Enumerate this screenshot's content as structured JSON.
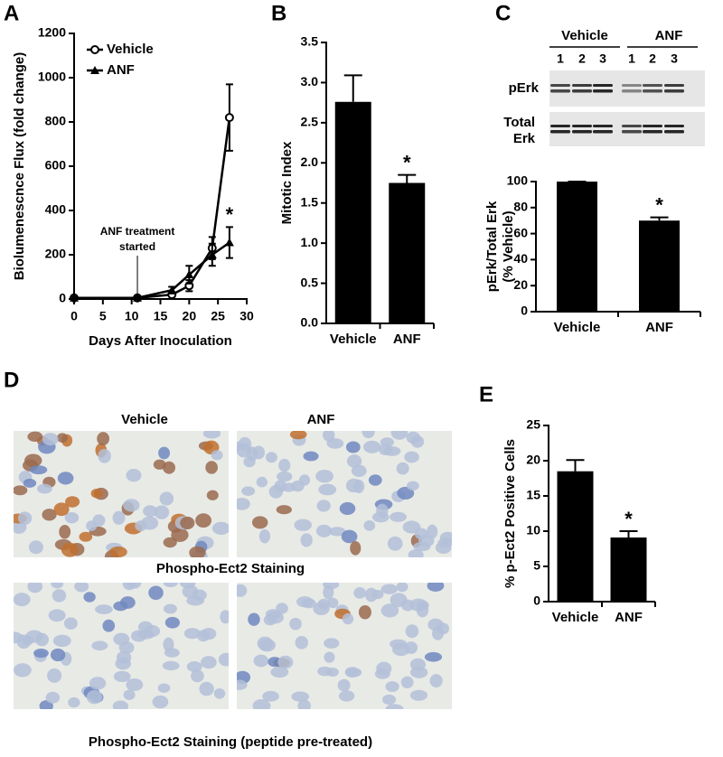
{
  "panel_labels": [
    "A",
    "B",
    "C",
    "D",
    "E"
  ],
  "chart_data": [
    {
      "type": "line",
      "xlabel": "Days After Inoculation",
      "ylabel": [
        "Biolumenescnce Flux (fold change)"
      ],
      "x": [
        0,
        11,
        17,
        20,
        24,
        27
      ],
      "series": [
        {
          "name": "Vehicle",
          "color": "#000000",
          "marker": "open-circle",
          "values": [
            5,
            5,
            20,
            60,
            230,
            820
          ],
          "errors": [
            5,
            5,
            10,
            25,
            50,
            150
          ]
        },
        {
          "name": "ANF",
          "color": "#000000",
          "marker": "filled-triangle",
          "values": [
            5,
            5,
            40,
            110,
            200,
            255
          ],
          "errors": [
            5,
            5,
            15,
            40,
            50,
            70
          ]
        }
      ],
      "xlim": [
        0,
        30
      ],
      "xticks": [
        0,
        5,
        10,
        15,
        20,
        25,
        30
      ],
      "ylim": [
        0,
        1200
      ],
      "yticks": [
        0,
        200,
        400,
        600,
        800,
        1000,
        1200
      ],
      "annotation_lines": [
        "ANF treatment",
        "started"
      ],
      "annotation_x": 11,
      "significance": "*",
      "legend": "upper-left"
    },
    {
      "type": "bar",
      "ylabel": [
        "Mitotic Index"
      ],
      "categories": [
        "Vehicle",
        "ANF"
      ],
      "values": [
        2.76,
        1.75
      ],
      "errors": [
        0.33,
        0.1
      ],
      "color": "#000000",
      "ylim": [
        0,
        3.5
      ],
      "yticks": [
        {
          "value": 0,
          "label": "0.0"
        },
        0.5,
        {
          "value": 1,
          "label": "1.0"
        },
        1.5,
        {
          "value": 2,
          "label": "2.0"
        },
        2.5,
        {
          "value": 3,
          "label": "3.0"
        },
        3.5
      ],
      "significance": "*"
    },
    {
      "type": "bar",
      "ylabel": [
        "pErk/Total Erk",
        "(% Vehicle)"
      ],
      "categories": [
        "Vehicle",
        "ANF"
      ],
      "values": [
        100,
        70
      ],
      "errors": [
        0,
        2.5
      ],
      "color": "#000000",
      "ylim": [
        0,
        100
      ],
      "yticks": [
        0,
        20,
        40,
        60,
        80,
        100
      ],
      "significance": "*"
    },
    {
      "type": "bar",
      "ylabel": [
        "% p-Ect2 Positive Cells"
      ],
      "categories": [
        "Vehicle",
        "ANF"
      ],
      "values": [
        18.5,
        9.1
      ],
      "errors": [
        1.6,
        0.9
      ],
      "color": "#000000",
      "ylim": [
        0,
        25
      ],
      "yticks": [
        0,
        5,
        10,
        15,
        20,
        25
      ],
      "significance": "*"
    }
  ],
  "blot": {
    "groups": [
      "Vehicle",
      "ANF"
    ],
    "lanes": [
      "1",
      "2",
      "3",
      "1",
      "2",
      "3"
    ],
    "rows": [
      "pErk",
      "Total",
      "Erk"
    ]
  },
  "micrographs": {
    "columns": [
      "Vehicle",
      "ANF"
    ],
    "captions": [
      "Phospho-Ect2 Staining",
      "Phospho-Ect2 Staining (peptide pre-treated)"
    ]
  }
}
